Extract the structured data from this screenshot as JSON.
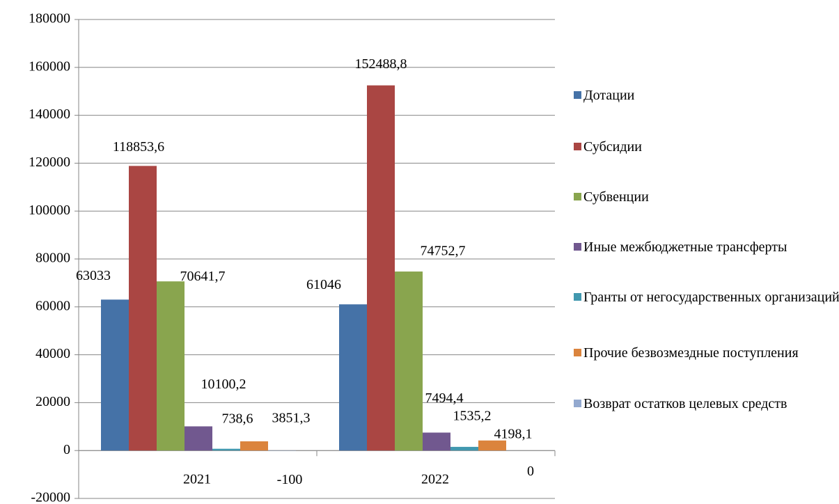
{
  "chart_data": {
    "type": "bar",
    "categories": [
      "2021",
      "2022"
    ],
    "series": [
      {
        "name": "Дотации",
        "color": "#4572a7",
        "values": [
          63033,
          61046
        ],
        "value_labels": [
          "63033",
          "61046"
        ]
      },
      {
        "name": "Субсидии",
        "color": "#aa4643",
        "values": [
          118853.6,
          152488.8
        ],
        "value_labels": [
          "118853,6",
          "152488,8"
        ]
      },
      {
        "name": "Субвенции",
        "color": "#89a54e",
        "values": [
          70641.7,
          74752.7
        ],
        "value_labels": [
          "70641,7",
          "74752,7"
        ]
      },
      {
        "name": "Иные межбюджетные трансферты",
        "color": "#71588f",
        "values": [
          10100.2,
          7494.4
        ],
        "value_labels": [
          "10100,2",
          "7494,4"
        ]
      },
      {
        "name": "Гранты от негосударственных организаций",
        "color": "#4198af",
        "values": [
          738.6,
          1535.2
        ],
        "value_labels": [
          "738,6",
          "1535,2"
        ]
      },
      {
        "name": "Прочие безвозмездные поступления",
        "color": "#db843d",
        "values": [
          3851.3,
          4198.1
        ],
        "value_labels": [
          "3851,3",
          "4198,1"
        ]
      },
      {
        "name": "Возврат остатков целевых средств",
        "color": "#93a9cf",
        "values": [
          -100,
          0
        ],
        "value_labels": [
          "-100",
          "0"
        ]
      }
    ],
    "ylim": [
      -20000,
      180000
    ],
    "yticks": [
      -20000,
      0,
      20000,
      40000,
      60000,
      80000,
      100000,
      120000,
      140000,
      160000,
      180000
    ],
    "grid": true,
    "legend": "right"
  }
}
